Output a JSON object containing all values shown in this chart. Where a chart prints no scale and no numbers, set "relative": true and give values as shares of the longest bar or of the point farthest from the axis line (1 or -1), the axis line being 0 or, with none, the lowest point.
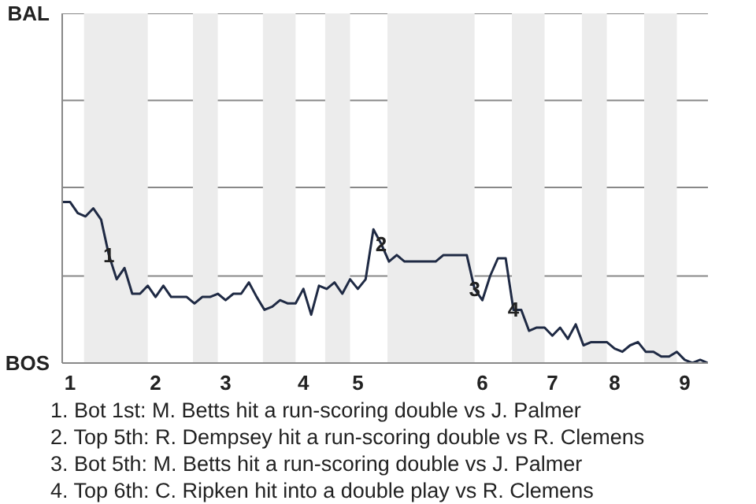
{
  "chart_data": {
    "type": "line",
    "relative": true,
    "categories": [
      null,
      "1",
      null,
      null,
      null,
      null,
      null,
      null,
      null,
      null,
      null,
      null,
      "2",
      null,
      null,
      null,
      null,
      null,
      null,
      null,
      null,
      "3",
      null,
      null,
      null,
      null,
      null,
      null,
      null,
      null,
      null,
      "4",
      null,
      null,
      null,
      null,
      null,
      null,
      "5",
      null,
      null,
      null,
      null,
      null,
      null,
      null,
      null,
      null,
      null,
      null,
      null,
      null,
      null,
      null,
      "6",
      null,
      null,
      null,
      null,
      null,
      null,
      null,
      null,
      "7",
      null,
      null,
      null,
      null,
      null,
      null,
      null,
      "8",
      null,
      null,
      null,
      null,
      null,
      null,
      null,
      null,
      "9",
      null,
      null,
      null
    ],
    "marker": "none",
    "line_style": "solid",
    "ref_lines": [
      {
        "axis": "y",
        "value": 0.54,
        "color": "#888888"
      },
      {
        "axis": "y",
        "value": 1.09,
        "color": "#888888"
      },
      {
        "axis": "y",
        "value": 1.63,
        "color": "#888888"
      },
      {
        "axis": "y",
        "value": 2.17,
        "color": "#888888"
      }
    ],
    "series": [
      {
        "color": "#1f2a44",
        "values": [
          1,
          1,
          0.93,
          0.91,
          0.96,
          0.89,
          0.67,
          0.52,
          0.59,
          0.43,
          0.43,
          0.48,
          0.41,
          0.48,
          0.41,
          0.41,
          0.41,
          0.37,
          0.41,
          0.41,
          0.43,
          0.39,
          0.43,
          0.43,
          0.5,
          0.41,
          0.33,
          0.35,
          0.39,
          0.37,
          0.37,
          0.46,
          0.3,
          0.48,
          0.46,
          0.5,
          0.43,
          0.52,
          0.46,
          0.52,
          0.83,
          0.74,
          0.63,
          0.67,
          0.63,
          0.63,
          0.63,
          0.63,
          0.63,
          0.67,
          0.67,
          0.67,
          0.67,
          0.46,
          0.39,
          0.54,
          0.65,
          0.65,
          0.33,
          0.33,
          0.2,
          0.22,
          0.22,
          0.17,
          0.22,
          0.15,
          0.24,
          0.11,
          0.13,
          0.13,
          0.13,
          0.09,
          0.07,
          0.11,
          0.13,
          0.07,
          0.07,
          0.04,
          0.04,
          0.07,
          0.02,
          0,
          0.02,
          0
        ]
      }
    ],
    "annotations": [
      "BAL",
      "BOS",
      {
        "text": "1",
        "y": 0.67
      },
      {
        "text": "2",
        "y": 0.74
      },
      {
        "text": "3",
        "y": 0.46
      },
      {
        "text": "4",
        "y": 0.33
      },
      "1. Bot 1st: M. Betts hit a run-scoring double vs J. Palmer",
      "2. Top 5th: R. Dempsey hit a run-scoring double vs R. Clemens",
      "3. Bot 5th: M. Betts hit a run-scoring double vs J. Palmer",
      "4. Top 6th: C. Ripken hit into a double play vs R. Clemens"
    ]
  }
}
